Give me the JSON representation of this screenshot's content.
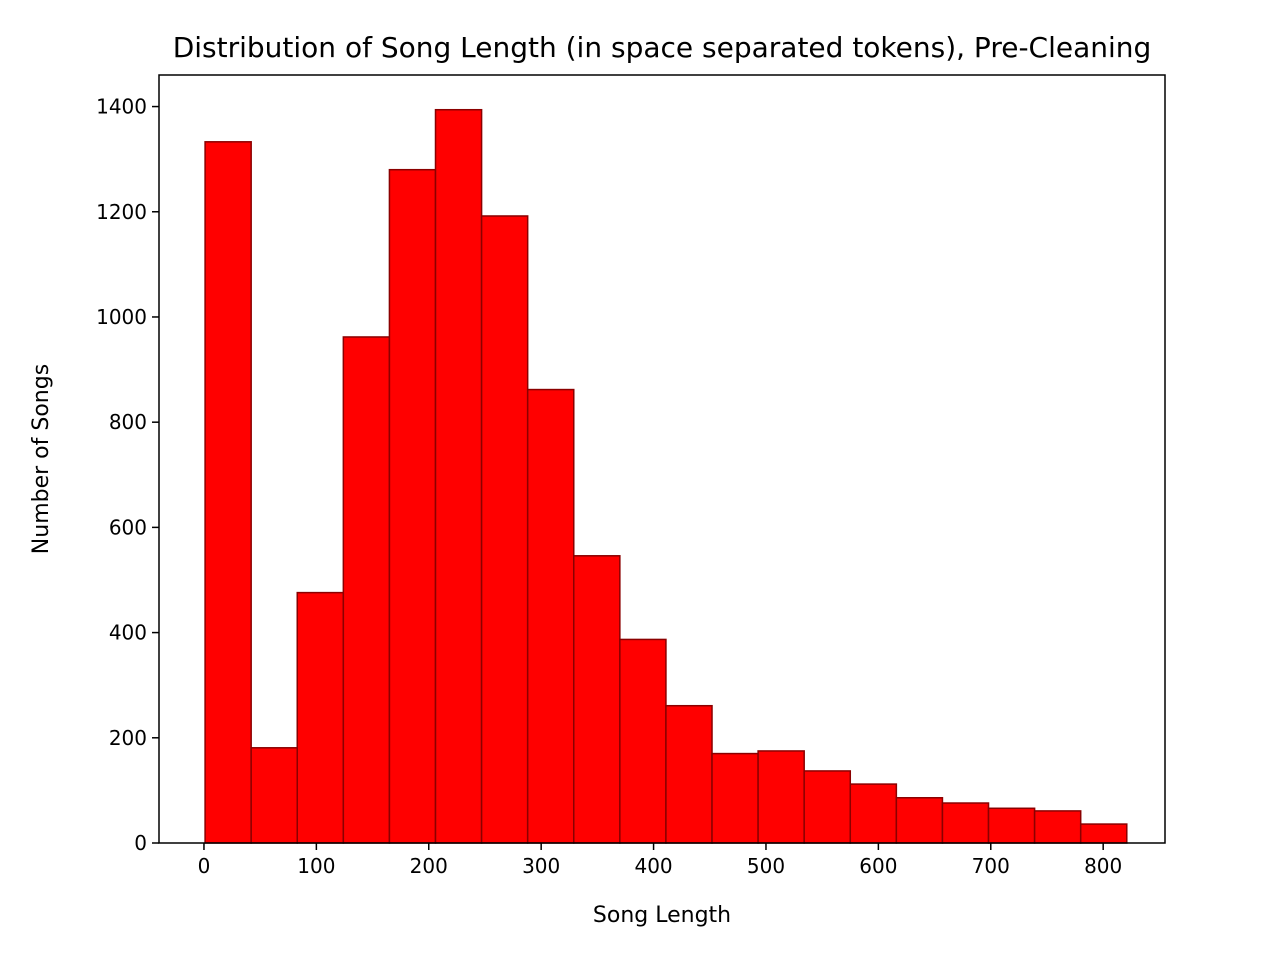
{
  "chart_data": {
    "type": "bar",
    "title": "Distribution of Song Length (in space separated tokens), Pre-Cleaning",
    "xlabel": "Song Length",
    "ylabel": "Number of Songs",
    "xlim": [
      -40,
      855
    ],
    "ylim": [
      0,
      1460
    ],
    "xticks": [
      "0",
      "100",
      "200",
      "300",
      "400",
      "500",
      "600",
      "700",
      "800"
    ],
    "yticks": [
      "0",
      "200",
      "400",
      "600",
      "800",
      "1000",
      "1200",
      "1400"
    ],
    "bin_edges": [
      1,
      42,
      83,
      124,
      165,
      206,
      247,
      288,
      329,
      370,
      411,
      452,
      493,
      534,
      575,
      616,
      657,
      698,
      739,
      780,
      821
    ],
    "values": [
      1333,
      181,
      476,
      962,
      1280,
      1394,
      1192,
      862,
      546,
      387,
      261,
      170,
      175,
      137,
      112,
      86,
      76,
      66,
      61,
      36
    ],
    "bar_color": "#ff0000",
    "edge_color": "#8b0000",
    "grid": false
  }
}
